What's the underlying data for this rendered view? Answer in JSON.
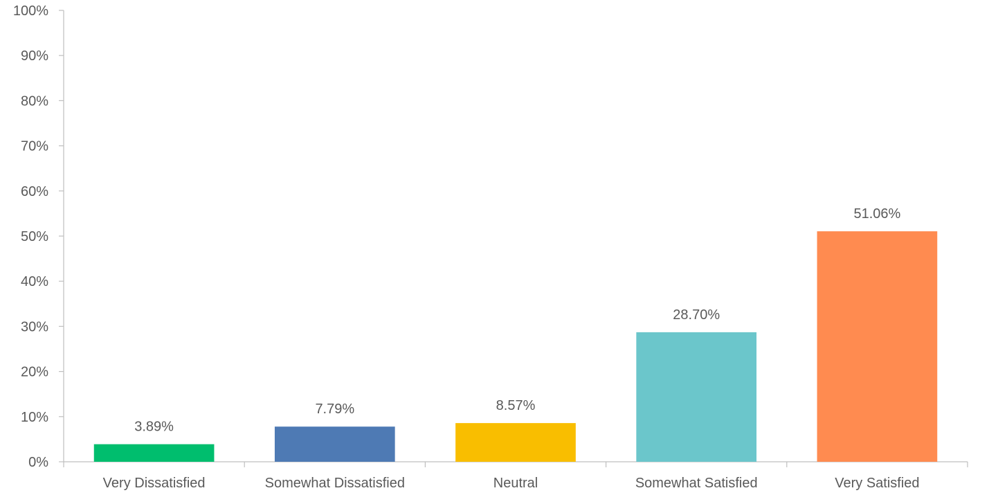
{
  "chart_data": {
    "type": "bar",
    "title": "",
    "xlabel": "",
    "ylabel": "",
    "categories": [
      "Very Dissatisfied",
      "Somewhat Dissatisfied",
      "Neutral",
      "Somewhat Satisfied",
      "Very Satisfied"
    ],
    "values": [
      3.89,
      7.79,
      8.57,
      28.7,
      51.06
    ],
    "data_labels": [
      "3.89%",
      "7.79%",
      "8.57%",
      "28.70%",
      "51.06%"
    ],
    "colors": [
      "#00be6e",
      "#4e7ab4",
      "#f9be00",
      "#6bc6cb",
      "#ff8b50"
    ],
    "ylim": [
      0,
      100
    ],
    "y_ticks": [
      0,
      10,
      20,
      30,
      40,
      50,
      60,
      70,
      80,
      90,
      100
    ],
    "y_tick_labels": [
      "0%",
      "10%",
      "20%",
      "30%",
      "40%",
      "50%",
      "60%",
      "70%",
      "80%",
      "90%",
      "100%"
    ],
    "grid": false,
    "legend": "none"
  }
}
